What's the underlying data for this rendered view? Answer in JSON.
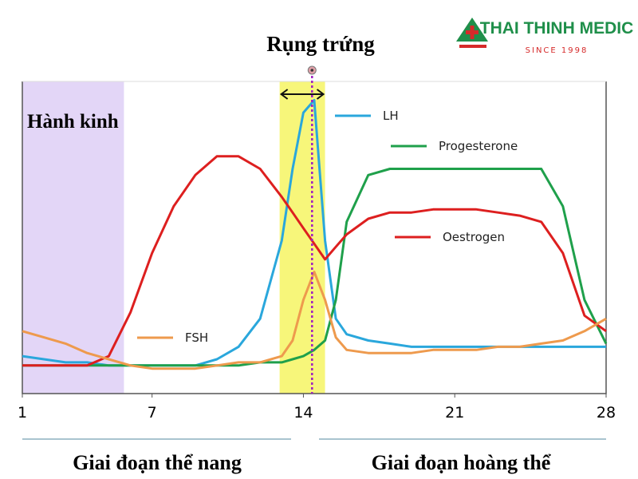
{
  "chart_data": {
    "type": "line",
    "xlim": [
      1,
      28
    ],
    "ylim": [
      0,
      100
    ],
    "xticks": [
      1,
      7,
      14,
      21,
      28
    ],
    "menstruation": [
      1,
      5.7
    ],
    "ovulation_window": [
      12.9,
      15
    ],
    "ovulation_day": 14.4,
    "annotations": {
      "ovulation": "Rụng trứng",
      "menstruation": "Hành kinh",
      "follicular_phase": "Giai đoạn thể nang",
      "luteal_phase": "Giai đoạn hoàng thể"
    },
    "logo": {
      "name": "THAI THINH MEDIC",
      "since": "SINCE 1998"
    },
    "x": [
      1,
      2,
      3,
      4,
      5,
      6,
      7,
      8,
      9,
      10,
      11,
      12,
      13,
      13.5,
      14,
      14.5,
      15,
      15.5,
      16,
      17,
      18,
      19,
      20,
      21,
      22,
      23,
      24,
      25,
      26,
      27,
      28
    ],
    "series": [
      {
        "name": "LH",
        "color": "#2aa7dc",
        "values": [
          12,
          11,
          10,
          10,
          9,
          9,
          9,
          9,
          9,
          11,
          15,
          24,
          49,
          72,
          90,
          94,
          49,
          24,
          19,
          17,
          16,
          15,
          15,
          15,
          15,
          15,
          15,
          15,
          15,
          15,
          15
        ]
      },
      {
        "name": "Progesterone",
        "color": "#1fa04b",
        "values": [
          9,
          9,
          9,
          9,
          9,
          9,
          9,
          9,
          9,
          9,
          9,
          10,
          10,
          11,
          12,
          14,
          17,
          30,
          55,
          70,
          72,
          72,
          72,
          72,
          72,
          72,
          72,
          72,
          60,
          30,
          16
        ]
      },
      {
        "name": "Oestrogen",
        "color": "#dd1f1f",
        "values": [
          9,
          9,
          9,
          9,
          12,
          26,
          45,
          60,
          70,
          76,
          76,
          72,
          63,
          58,
          53,
          48,
          43,
          47,
          51,
          56,
          58,
          58,
          59,
          59,
          59,
          58,
          57,
          55,
          45,
          25,
          20
        ]
      },
      {
        "name": "FSH",
        "color": "#ee9a4d",
        "values": [
          20,
          18,
          16,
          13,
          11,
          9,
          8,
          8,
          8,
          9,
          10,
          10,
          12,
          17,
          30,
          39,
          30,
          18,
          14,
          13,
          13,
          13,
          14,
          14,
          14,
          15,
          15,
          16,
          17,
          20,
          24
        ]
      }
    ]
  }
}
